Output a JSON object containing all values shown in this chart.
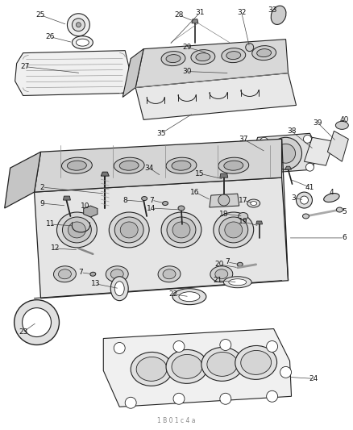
{
  "bg_color": "#ffffff",
  "line_color": "#222222",
  "fig_width": 4.38,
  "fig_height": 5.33,
  "footer_text": "1 B 0 1 c 4 a"
}
